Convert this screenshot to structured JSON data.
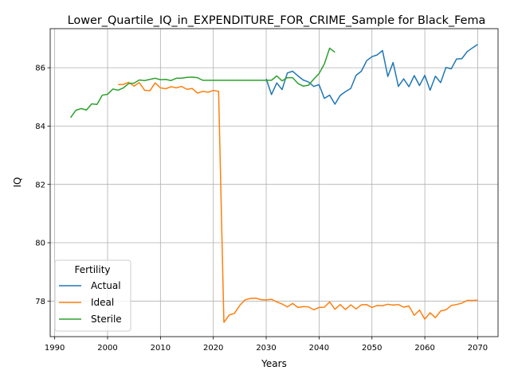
{
  "chart_data": {
    "type": "line",
    "title": "Lower_Quartile_IQ_in_EXPENDITURE_FOR_CRIME_Sample for Black_Fema",
    "xlabel": "Years",
    "ylabel": "IQ",
    "xlim": [
      1989.15,
      2073.85
    ],
    "ylim": [
      76.78,
      87.34
    ],
    "xticks": [
      1990,
      2000,
      2010,
      2020,
      2030,
      2040,
      2050,
      2060,
      2070
    ],
    "yticks": [
      78,
      80,
      82,
      84,
      86
    ],
    "grid": true,
    "legend": {
      "title": "Fertility",
      "position": "lower-left"
    },
    "series": [
      {
        "name": "Actual",
        "color": "#1f77b4",
        "x": [
          2030,
          2031,
          2032,
          2033,
          2034,
          2035,
          2036,
          2037,
          2038,
          2039,
          2040,
          2041,
          2042,
          2043,
          2044,
          2045,
          2046,
          2047,
          2048,
          2049,
          2050,
          2051,
          2052,
          2053,
          2054,
          2055,
          2056,
          2057,
          2058,
          2059,
          2060,
          2061,
          2062,
          2063,
          2064,
          2065,
          2066,
          2067,
          2068,
          2069,
          2070
        ],
        "y": [
          85.62,
          85.08,
          85.48,
          85.25,
          85.82,
          85.88,
          85.72,
          85.58,
          85.51,
          85.36,
          85.42,
          84.95,
          85.06,
          84.75,
          85.05,
          85.18,
          85.29,
          85.74,
          85.88,
          86.24,
          86.38,
          86.44,
          86.59,
          85.7,
          86.18,
          85.36,
          85.62,
          85.35,
          85.73,
          85.39,
          85.74,
          85.23,
          85.71,
          85.49,
          86.01,
          85.96,
          86.3,
          86.31,
          86.55,
          86.68,
          86.8
        ]
      },
      {
        "name": "Ideal",
        "color": "#ff7f0e",
        "x": [
          2002,
          2003,
          2004,
          2005,
          2006,
          2007,
          2008,
          2009,
          2010,
          2011,
          2012,
          2013,
          2014,
          2015,
          2016,
          2017,
          2018,
          2019,
          2020,
          2021,
          2022,
          2023,
          2024,
          2025,
          2026,
          2027,
          2028,
          2029,
          2030,
          2031,
          2032,
          2033,
          2034,
          2035,
          2036,
          2037,
          2038,
          2039,
          2040,
          2041,
          2042,
          2043,
          2044,
          2045,
          2046,
          2047,
          2048,
          2049,
          2050,
          2051,
          2052,
          2053,
          2054,
          2055,
          2056,
          2057,
          2058,
          2059,
          2060,
          2061,
          2062,
          2063,
          2064,
          2065,
          2066,
          2067,
          2068,
          2069,
          2070
        ],
        "y": [
          85.42,
          85.43,
          85.5,
          85.37,
          85.49,
          85.23,
          85.21,
          85.48,
          85.31,
          85.28,
          85.35,
          85.31,
          85.36,
          85.26,
          85.29,
          85.13,
          85.19,
          85.16,
          85.22,
          85.19,
          77.27,
          77.52,
          77.58,
          77.85,
          78.04,
          78.09,
          78.1,
          78.05,
          78.04,
          78.06,
          77.97,
          77.9,
          77.8,
          77.92,
          77.78,
          77.81,
          77.8,
          77.7,
          77.78,
          77.79,
          77.97,
          77.72,
          77.88,
          77.71,
          77.87,
          77.73,
          77.87,
          77.88,
          77.78,
          77.85,
          77.84,
          77.89,
          77.86,
          77.88,
          77.79,
          77.83,
          77.51,
          77.69,
          77.38,
          77.6,
          77.43,
          77.66,
          77.7,
          77.85,
          77.88,
          77.93,
          78.02,
          78.02,
          78.03
        ]
      },
      {
        "name": "Sterile",
        "color": "#2ca02c",
        "x": [
          1993,
          1994,
          1995,
          1996,
          1997,
          1998,
          1999,
          2000,
          2001,
          2002,
          2003,
          2004,
          2005,
          2006,
          2007,
          2008,
          2009,
          2010,
          2011,
          2012,
          2013,
          2014,
          2015,
          2016,
          2017,
          2018,
          2019,
          2020,
          2021,
          2022,
          2023,
          2024,
          2025,
          2026,
          2027,
          2028,
          2029,
          2030,
          2031,
          2032,
          2033,
          2034,
          2035,
          2036,
          2037,
          2038,
          2039,
          2040,
          2041,
          2042,
          2043
        ],
        "y": [
          84.29,
          84.54,
          84.6,
          84.55,
          84.76,
          84.74,
          85.06,
          85.09,
          85.27,
          85.23,
          85.31,
          85.46,
          85.47,
          85.58,
          85.56,
          85.6,
          85.64,
          85.59,
          85.6,
          85.56,
          85.64,
          85.64,
          85.67,
          85.68,
          85.66,
          85.57,
          85.57,
          85.57,
          85.57,
          85.57,
          85.57,
          85.57,
          85.57,
          85.57,
          85.57,
          85.57,
          85.57,
          85.57,
          85.57,
          85.72,
          85.55,
          85.66,
          85.66,
          85.46,
          85.37,
          85.4,
          85.61,
          85.8,
          86.13,
          86.67,
          86.53
        ]
      }
    ]
  }
}
